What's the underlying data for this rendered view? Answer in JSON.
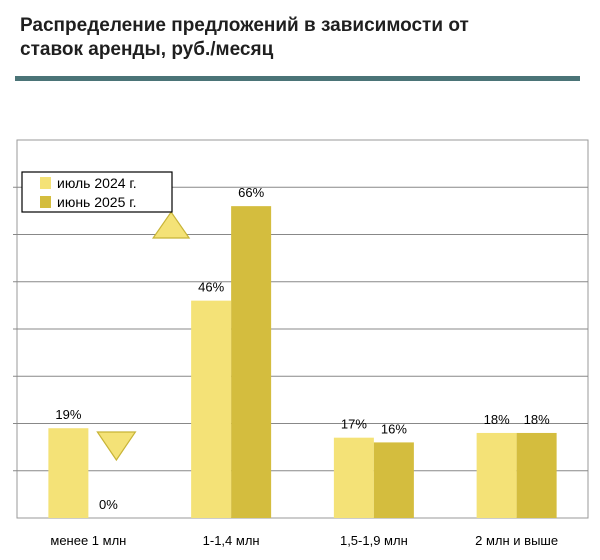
{
  "title_line1": "Распределение предложений в зависимости от",
  "title_line2": "ставок аренды, руб./месяц",
  "chart_data": {
    "type": "bar",
    "categories": [
      "менее 1 млн",
      "1-1,4 млн",
      "1,5-1,9 млн",
      "2 млн и выше"
    ],
    "series": [
      {
        "name": "июль 2024 г.",
        "values": [
          19,
          46,
          17,
          18
        ],
        "labels": [
          "19%",
          "46%",
          "17%",
          "18%"
        ],
        "color": "#f4e277"
      },
      {
        "name": "июнь 2025 г.",
        "values": [
          0,
          66,
          16,
          18
        ],
        "labels": [
          "0%",
          "66%",
          "16%",
          "18%"
        ],
        "color": "#d4bd3e"
      }
    ],
    "ylim": [
      0,
      80
    ],
    "grid": true,
    "legend": "top-left",
    "markers": [
      {
        "category": "1-1,4 млн",
        "direction": "up",
        "color": "#f4e277"
      },
      {
        "category": "менее 1 млн",
        "direction": "down",
        "color": "#f4e277"
      }
    ]
  }
}
